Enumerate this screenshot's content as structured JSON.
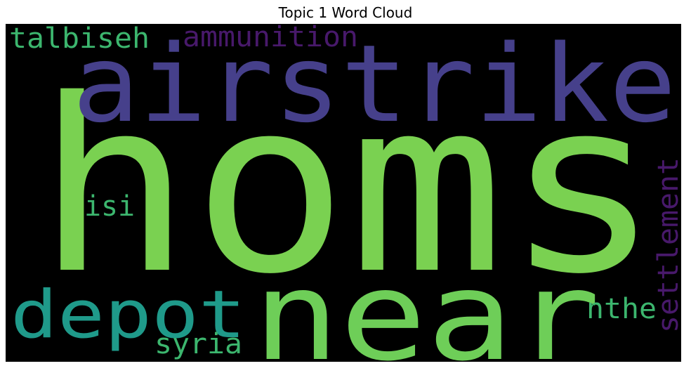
{
  "chart_data": {
    "type": "wordcloud",
    "title": "Topic 1 Word Cloud",
    "background": "#000000",
    "colormap": "viridis",
    "words": [
      {
        "text": "homs",
        "weight": 1.0,
        "color": "#7ad151"
      },
      {
        "text": "airstrike",
        "weight": 0.62,
        "color": "#46408b"
      },
      {
        "text": "near",
        "weight": 0.85,
        "color": "#6ece58"
      },
      {
        "text": "depot",
        "weight": 0.42,
        "color": "#1f9a8a"
      },
      {
        "text": "talbiseh",
        "weight": 0.15,
        "color": "#3cb66e"
      },
      {
        "text": "ammunition",
        "weight": 0.15,
        "color": "#48196b"
      },
      {
        "text": "settlement",
        "weight": 0.15,
        "color": "#48196b"
      },
      {
        "text": "isi",
        "weight": 0.15,
        "color": "#3cb66e"
      },
      {
        "text": "nthe",
        "weight": 0.15,
        "color": "#3cb66e"
      },
      {
        "text": "syria",
        "weight": 0.15,
        "color": "#3cb66e"
      }
    ]
  }
}
